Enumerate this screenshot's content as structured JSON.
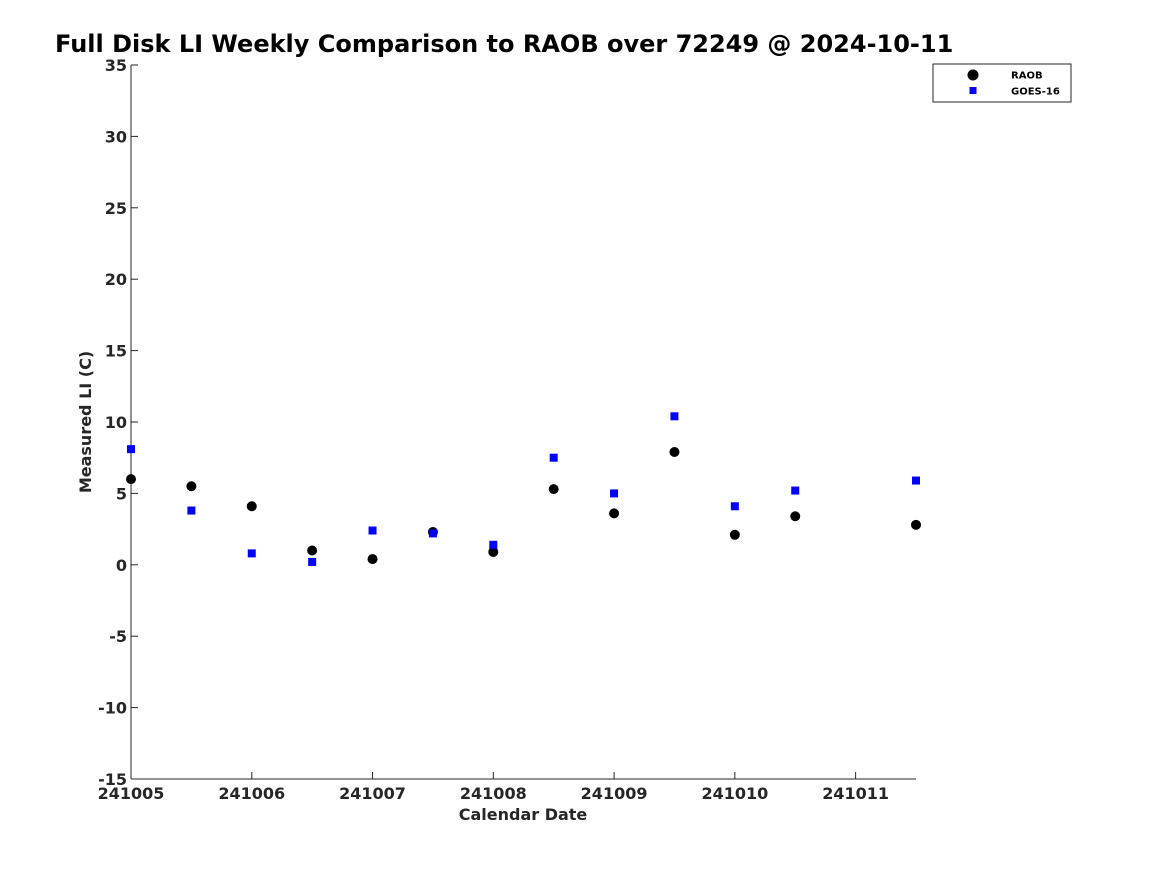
{
  "chart_data": {
    "type": "scatter",
    "title": "Full Disk LI Weekly Comparison to RAOB over 72249 @ 2024-10-11",
    "xlabel": "Calendar Date",
    "ylabel": "Measured LI (C)",
    "xlim": [
      241005,
      241011.5
    ],
    "ylim": [
      -15,
      35
    ],
    "xticks": [
      {
        "value": 241005,
        "label": "241005"
      },
      {
        "value": 241006,
        "label": "241006"
      },
      {
        "value": 241007,
        "label": "241007"
      },
      {
        "value": 241008,
        "label": "241008"
      },
      {
        "value": 241009,
        "label": "241009"
      },
      {
        "value": 241010,
        "label": "241010"
      },
      {
        "value": 241011,
        "label": "241011"
      }
    ],
    "yticks": [
      {
        "value": 35,
        "label": "35"
      },
      {
        "value": 30,
        "label": "30"
      },
      {
        "value": 25,
        "label": "25"
      },
      {
        "value": 20,
        "label": "20"
      },
      {
        "value": 15,
        "label": "15"
      },
      {
        "value": 10,
        "label": "10"
      },
      {
        "value": 5,
        "label": "5"
      },
      {
        "value": 0,
        "label": "0"
      },
      {
        "value": -5,
        "label": "-5"
      },
      {
        "value": -10,
        "label": "-10"
      },
      {
        "value": -15,
        "label": "-15"
      }
    ],
    "grid": false,
    "legend_position": "top-right",
    "series": [
      {
        "name": "RAOB",
        "marker": "circle",
        "color": "#000000",
        "points": [
          {
            "x": 241005.0,
            "y": 6.0
          },
          {
            "x": 241005.5,
            "y": 5.5
          },
          {
            "x": 241006.0,
            "y": 4.1
          },
          {
            "x": 241006.5,
            "y": 1.0
          },
          {
            "x": 241007.0,
            "y": 0.4
          },
          {
            "x": 241007.5,
            "y": 2.3
          },
          {
            "x": 241008.0,
            "y": 0.9
          },
          {
            "x": 241008.5,
            "y": 5.3
          },
          {
            "x": 241009.0,
            "y": 3.6
          },
          {
            "x": 241009.5,
            "y": 7.9
          },
          {
            "x": 241010.0,
            "y": 2.1
          },
          {
            "x": 241010.5,
            "y": 3.4
          },
          {
            "x": 241011.5,
            "y": 2.8
          }
        ]
      },
      {
        "name": "GOES-16",
        "marker": "square",
        "color": "#0000ff",
        "points": [
          {
            "x": 241005.0,
            "y": 8.1
          },
          {
            "x": 241005.5,
            "y": 3.8
          },
          {
            "x": 241006.0,
            "y": 0.8
          },
          {
            "x": 241006.5,
            "y": 0.2
          },
          {
            "x": 241007.0,
            "y": 2.4
          },
          {
            "x": 241007.5,
            "y": 2.2
          },
          {
            "x": 241008.0,
            "y": 1.4
          },
          {
            "x": 241008.5,
            "y": 7.5
          },
          {
            "x": 241009.0,
            "y": 5.0
          },
          {
            "x": 241009.5,
            "y": 10.4
          },
          {
            "x": 241010.0,
            "y": 4.1
          },
          {
            "x": 241010.5,
            "y": 5.2
          },
          {
            "x": 241011.5,
            "y": 5.9
          }
        ]
      }
    ]
  }
}
